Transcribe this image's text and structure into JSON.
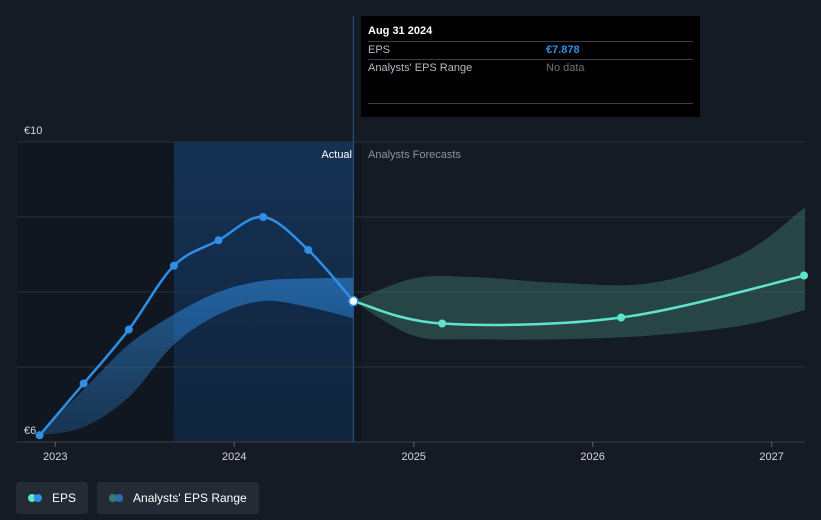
{
  "chart_data": {
    "type": "line",
    "x_ticks": [
      "2023",
      "2024",
      "2025",
      "2026",
      "2027"
    ],
    "y_ticks": [
      {
        "value": 10,
        "label": "€10"
      },
      {
        "value": 6,
        "label": "€6"
      }
    ],
    "ylim": [
      6,
      10
    ],
    "xlim": [
      "2022-10-15",
      "2027-03-10"
    ],
    "divider_date": "2024-08-31",
    "actual_label": "Actual",
    "forecast_label": "Analysts Forecasts",
    "series": [
      {
        "name": "EPS",
        "color": "#2f8ee6",
        "points": [
          {
            "date": "2022-11-30",
            "value": 6.09
          },
          {
            "date": "2023-02-28",
            "value": 6.78
          },
          {
            "date": "2023-05-31",
            "value": 7.5
          },
          {
            "date": "2023-08-31",
            "value": 8.35
          },
          {
            "date": "2023-11-30",
            "value": 8.69
          },
          {
            "date": "2024-02-29",
            "value": 9.0
          },
          {
            "date": "2024-05-31",
            "value": 8.56
          },
          {
            "date": "2024-08-31",
            "value": 7.878
          }
        ]
      },
      {
        "name": "EPS forecast",
        "color": "#5fe3cc",
        "points": [
          {
            "date": "2024-08-31",
            "value": 7.878
          },
          {
            "date": "2025-02-28",
            "value": 7.58
          },
          {
            "date": "2026-02-28",
            "value": 7.66
          },
          {
            "date": "2027-03-10",
            "value": 8.22
          }
        ]
      }
    ],
    "eps_range": {
      "name": "Analysts' EPS Range",
      "actual_band": [
        {
          "date": "2022-11-30",
          "upper": 6.12,
          "lower": 6.09
        },
        {
          "date": "2023-02-28",
          "upper": 6.7,
          "lower": 6.2
        },
        {
          "date": "2023-05-31",
          "upper": 7.3,
          "lower": 6.6
        },
        {
          "date": "2023-08-31",
          "upper": 7.7,
          "lower": 7.3
        },
        {
          "date": "2023-11-30",
          "upper": 8.0,
          "lower": 7.7
        },
        {
          "date": "2024-02-29",
          "upper": 8.15,
          "lower": 7.88
        },
        {
          "date": "2024-05-31",
          "upper": 8.18,
          "lower": 7.8
        },
        {
          "date": "2024-08-31",
          "upper": 8.19,
          "lower": 7.65
        }
      ],
      "forecast_band": [
        {
          "date": "2024-08-31",
          "upper": 7.878,
          "lower": 7.878
        },
        {
          "date": "2024-12-31",
          "upper": 8.18,
          "lower": 7.42
        },
        {
          "date": "2025-04-30",
          "upper": 8.2,
          "lower": 7.37
        },
        {
          "date": "2025-10-31",
          "upper": 8.12,
          "lower": 7.37
        },
        {
          "date": "2026-04-30",
          "upper": 8.12,
          "lower": 7.42
        },
        {
          "date": "2026-10-31",
          "upper": 8.5,
          "lower": 7.55
        },
        {
          "date": "2027-03-10",
          "upper": 9.13,
          "lower": 7.76
        }
      ]
    }
  },
  "tooltip": {
    "date": "Aug 31 2024",
    "rows": [
      {
        "label": "EPS",
        "value": "€7.878"
      },
      {
        "label": "Analysts' EPS Range",
        "value": "No data"
      }
    ]
  },
  "legend": {
    "items": [
      {
        "label": "EPS",
        "colors": [
          "#2f8ee6",
          "#5fe3cc"
        ]
      },
      {
        "label": "Analysts' EPS Range",
        "colors": [
          "#2a6fa8",
          "#3f7a6e"
        ]
      }
    ]
  },
  "colors": {
    "background": "#151b24",
    "grid": "#2b313b",
    "highlight": "#143050"
  }
}
